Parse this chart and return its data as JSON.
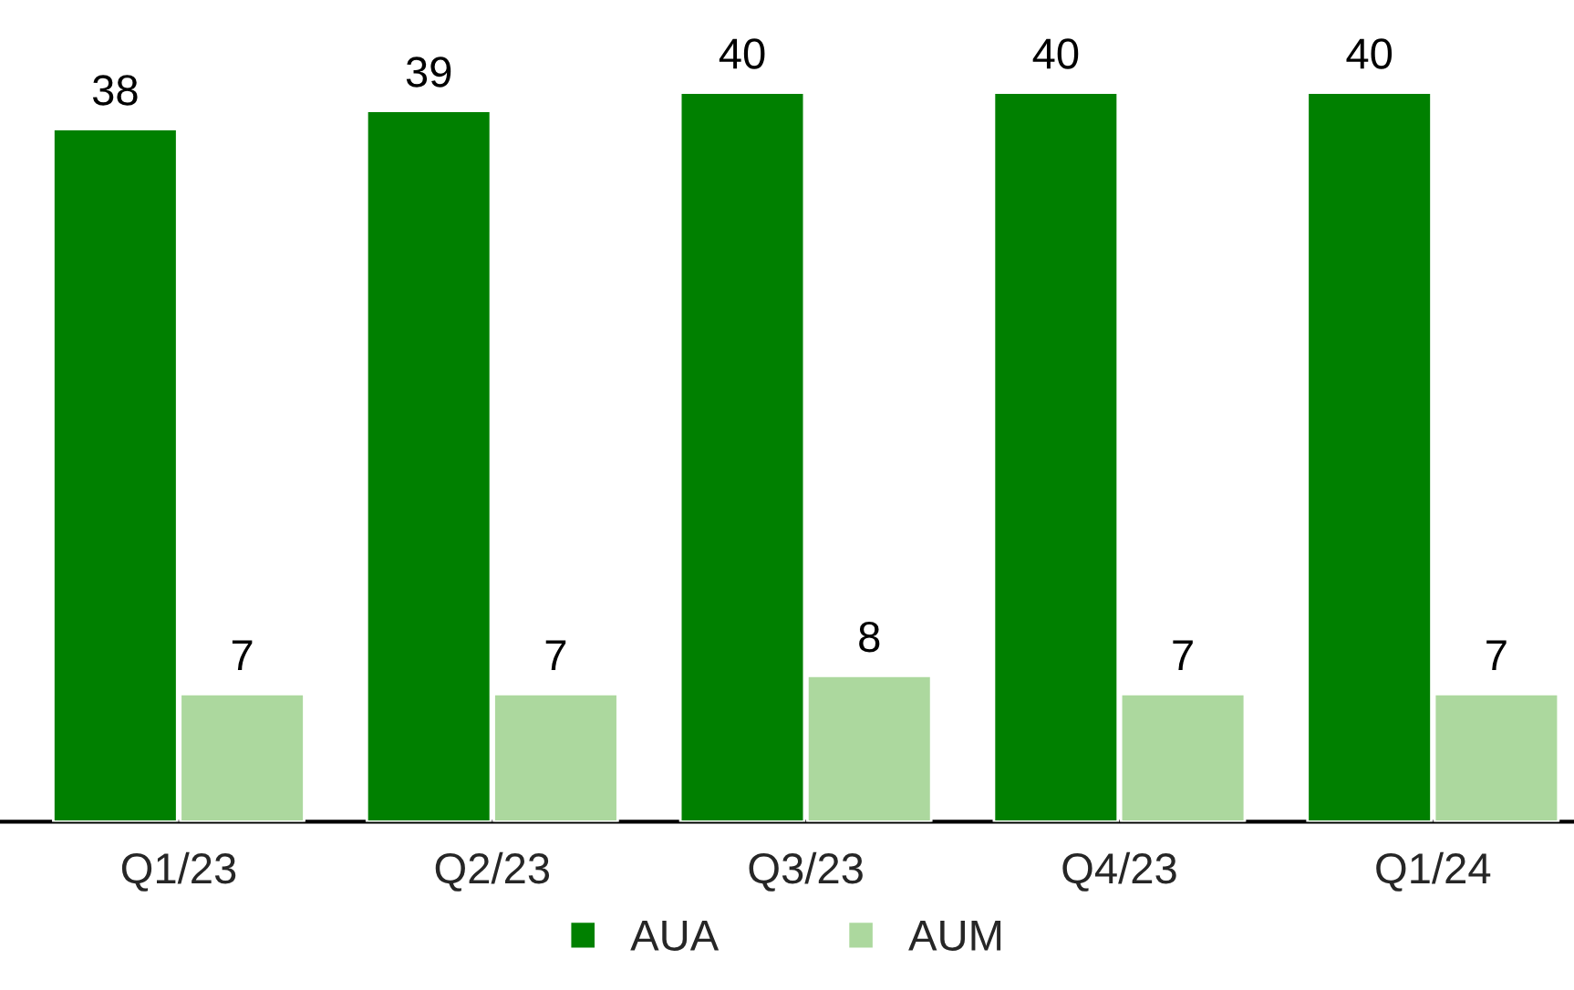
{
  "chart_data": {
    "type": "bar",
    "categories": [
      "Q1/23",
      "Q2/23",
      "Q3/23",
      "Q4/23",
      "Q1/24"
    ],
    "series": [
      {
        "name": "AUA",
        "color": "#008000",
        "values": [
          38,
          39,
          40,
          40,
          40
        ]
      },
      {
        "name": "AUM",
        "color": "#acd89e",
        "values": [
          7,
          7,
          8,
          7,
          7
        ]
      }
    ],
    "data_labels": true,
    "legend": "bottom",
    "grid": false
  }
}
